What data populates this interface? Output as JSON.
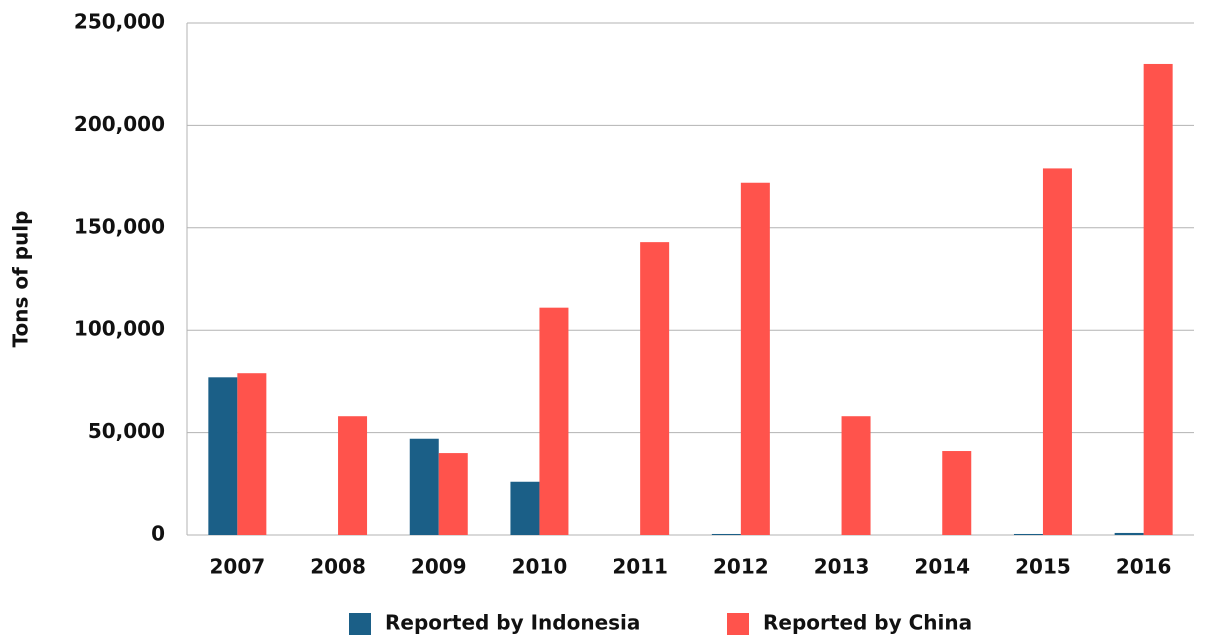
{
  "chart_data": {
    "type": "bar",
    "y_label": "Tons of pulp",
    "categories": [
      "2007",
      "2008",
      "2009",
      "2010",
      "2011",
      "2012",
      "2013",
      "2014",
      "2015",
      "2016"
    ],
    "series": [
      {
        "name": "Reported by Indonesia",
        "color": "#1b5f87",
        "values": [
          77000,
          0,
          47000,
          26000,
          0,
          500,
          0,
          0,
          500,
          1000
        ]
      },
      {
        "name": "Reported by China",
        "color": "#ff534c",
        "values": [
          79000,
          58000,
          40000,
          111000,
          143000,
          172000,
          58000,
          41000,
          179000,
          230000
        ]
      }
    ],
    "ylim": [
      0,
      250000
    ],
    "yticks": [
      0,
      {
        "value": 50000,
        "label": "50,000"
      },
      {
        "value": 100000,
        "label": "100,000"
      },
      {
        "value": 150000,
        "label": "150,000"
      },
      {
        "value": 200000,
        "label": "200,000"
      },
      {
        "value": 250000,
        "label": "250,000"
      }
    ],
    "grid": true,
    "legend": "bottom"
  }
}
